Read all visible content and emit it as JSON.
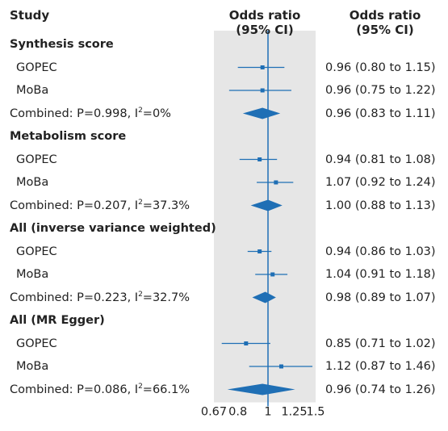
{
  "columns": {
    "study": "Study",
    "odds_line1": "Odds ratio",
    "odds_line2": "(95% CI)",
    "ci_line1": "Odds ratio",
    "ci_line2": "(95% CI)"
  },
  "colors": {
    "accent": "#1f6fb5",
    "panel": "#e6e6e6",
    "text": "#222222"
  },
  "chart_data": {
    "type": "forest",
    "x_scale": "log",
    "reference_line": 1,
    "xlim": [
      0.67,
      1.5
    ],
    "x_ticks": [
      {
        "value": 0.67,
        "label": "0.67"
      },
      {
        "value": 0.8,
        "label": "0.8"
      },
      {
        "value": 1,
        "label": "1"
      },
      {
        "value": 1.25,
        "label": "1.25"
      },
      {
        "value": 1.5,
        "label": "1.5"
      }
    ],
    "groups": [
      {
        "title": "Synthesis score",
        "rows": [
          {
            "label": "GOPEC",
            "or": 0.96,
            "lo": 0.8,
            "hi": 1.15,
            "text": "0.96 (0.80 to 1.15)"
          },
          {
            "label": "MoBa",
            "or": 0.96,
            "lo": 0.75,
            "hi": 1.22,
            "text": "0.96 (0.75 to 1.22)"
          }
        ],
        "combined": {
          "label_prefix": "Combined: P=0.998, I",
          "label_sup": "2",
          "label_suffix": "=0%",
          "or": 0.96,
          "lo": 0.83,
          "hi": 1.11,
          "text": "0.96 (0.83 to 1.11)"
        }
      },
      {
        "title": "Metabolism score",
        "rows": [
          {
            "label": "GOPEC",
            "or": 0.94,
            "lo": 0.81,
            "hi": 1.08,
            "text": "0.94 (0.81 to 1.08)"
          },
          {
            "label": "MoBa",
            "or": 1.07,
            "lo": 0.92,
            "hi": 1.24,
            "text": "1.07 (0.92 to 1.24)"
          }
        ],
        "combined": {
          "label_prefix": "Combined: P=0.207, I",
          "label_sup": "2",
          "label_suffix": "=37.3%",
          "or": 1.0,
          "lo": 0.88,
          "hi": 1.13,
          "text": "1.00 (0.88 to 1.13)"
        }
      },
      {
        "title": "All (inverse variance weighted)",
        "rows": [
          {
            "label": "GOPEC",
            "or": 0.94,
            "lo": 0.86,
            "hi": 1.03,
            "text": "0.94 (0.86 to 1.03)"
          },
          {
            "label": "MoBa",
            "or": 1.04,
            "lo": 0.91,
            "hi": 1.18,
            "text": "1.04 (0.91 to 1.18)"
          }
        ],
        "combined": {
          "label_prefix": "Combined: P=0.223, I",
          "label_sup": "2",
          "label_suffix": "=32.7%",
          "or": 0.98,
          "lo": 0.89,
          "hi": 1.07,
          "text": "0.98 (0.89 to 1.07)"
        }
      },
      {
        "title": "All (MR Egger)",
        "rows": [
          {
            "label": "GOPEC",
            "or": 0.85,
            "lo": 0.71,
            "hi": 1.02,
            "text": "0.85 (0.71 to 1.02)"
          },
          {
            "label": "MoBa",
            "or": 1.12,
            "lo": 0.87,
            "hi": 1.46,
            "text": "1.12 (0.87 to 1.46)"
          }
        ],
        "combined": {
          "label_prefix": "Combined: P=0.086, I",
          "label_sup": "2",
          "label_suffix": "=66.1%",
          "or": 0.96,
          "lo": 0.74,
          "hi": 1.26,
          "text": "0.96 (0.74 to 1.26)"
        }
      }
    ]
  }
}
